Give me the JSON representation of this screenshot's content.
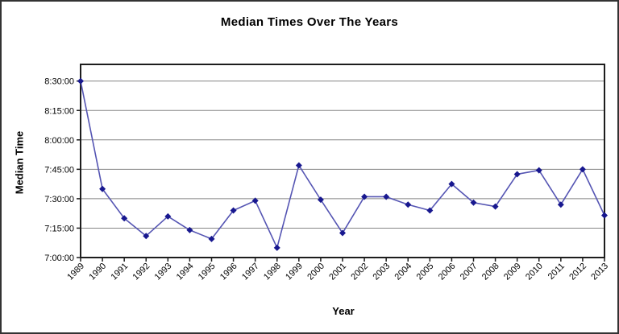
{
  "chart_data": {
    "type": "line",
    "title": "Median Times Over The Years",
    "xlabel": "Year",
    "ylabel": "Median Time",
    "grid": true,
    "legend": "none",
    "categories": [
      1989,
      1990,
      1991,
      1992,
      1993,
      1994,
      1995,
      1996,
      1997,
      1998,
      1999,
      2000,
      2001,
      2002,
      2003,
      2004,
      2005,
      2006,
      2007,
      2008,
      2009,
      2010,
      2011,
      2012,
      2013
    ],
    "series": [
      {
        "name": "Median Time",
        "times": [
          "8:30:00",
          "7:35:00",
          "7:20:00",
          "7:11:00",
          "7:21:00",
          "7:14:00",
          "7:09:30",
          "7:24:00",
          "7:29:00",
          "7:05:00",
          "7:47:00",
          "7:29:30",
          "7:12:30",
          "7:31:00",
          "7:31:00",
          "7:27:00",
          "7:24:00",
          "7:37:30",
          "7:28:00",
          "7:26:00",
          "7:42:30",
          "7:44:30",
          "7:27:00",
          "7:45:00",
          "7:21:30"
        ],
        "minutes_after_7_00": [
          90,
          35,
          20,
          11,
          21,
          14,
          9.5,
          24,
          29,
          5,
          47,
          29.5,
          12.5,
          31,
          31,
          27,
          24,
          37.5,
          28,
          26,
          42.5,
          44.5,
          27,
          45,
          21.5
        ]
      }
    ],
    "y_axis": {
      "ticks": [
        {
          "label": "8:30:00",
          "minutes": 90
        },
        {
          "label": "8:15:00",
          "minutes": 75
        },
        {
          "label": "8:00:00",
          "minutes": 60
        },
        {
          "label": "7:45:00",
          "minutes": 45
        },
        {
          "label": "7:30:00",
          "minutes": 30
        },
        {
          "label": "7:15:00",
          "minutes": 15
        },
        {
          "label": "7:00:00",
          "minutes": 0
        }
      ],
      "range_bottom": "7:00:00",
      "range_top_approx": "8:38:00"
    },
    "colors": {
      "line": "#5555b3",
      "marker": "#18188f",
      "grid": "#858585",
      "axis": "#1d1d1d",
      "background": "#ffffff",
      "frame_border": "#333333",
      "text": "#000000"
    }
  }
}
